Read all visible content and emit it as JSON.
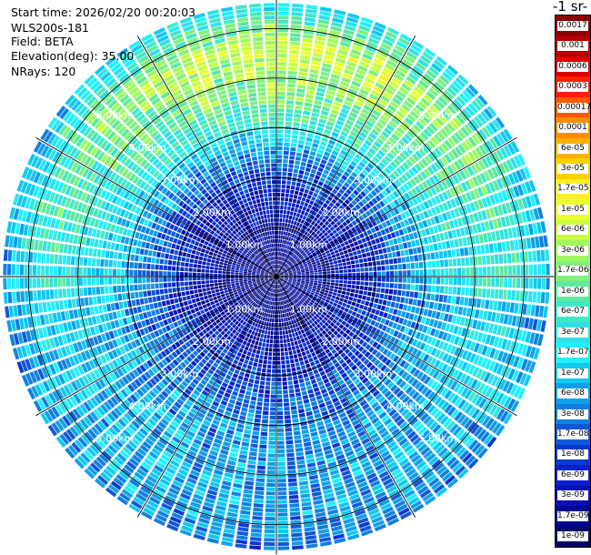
{
  "header": {
    "start_time": "Start time: 2026/02/20 00:20:03",
    "instrument": "WLS200s-181",
    "field": "Field: BETA",
    "elevation": "Elevation(deg): 35.00",
    "nrays": "NRays: 120"
  },
  "colorbar": {
    "unit_title": "-1 sr-",
    "labels": [
      "0.0017",
      "0.001",
      "0.0006",
      "0.0003",
      "0.00017",
      "0.0001",
      "6e-05",
      "3e-05",
      "1.7e-05",
      "1e-05",
      "6e-06",
      "3e-06",
      "1.7e-06",
      "1e-06",
      "6e-07",
      "3e-07",
      "1.7e-07",
      "1e-07",
      "6e-08",
      "3e-08",
      "1.7e-08",
      "1e-08",
      "6e-09",
      "3e-09",
      "1.7e-09",
      "1e-09"
    ],
    "colors": [
      "#8b0000",
      "#b40000",
      "#dc0000",
      "#ff1e00",
      "#ff5a00",
      "#ff8c00",
      "#ffb000",
      "#ffd000",
      "#ffef20",
      "#eaff30",
      "#c8ff40",
      "#a0f860",
      "#80f080",
      "#60e8a0",
      "#40e8c8",
      "#30e0e8",
      "#20f0ff",
      "#10c8f0",
      "#10a0e8",
      "#1080e0",
      "#1058d8",
      "#0a38d0",
      "#0a20c8",
      "#0810b0",
      "#050890",
      "#020468"
    ]
  },
  "chart_data": {
    "type": "heatmap",
    "projection": "polar PPI",
    "field": "BETA",
    "elevation_deg": 35.0,
    "n_rays": 120,
    "range_ring_labels": [
      "1.00km",
      "2.00km",
      "3.00km",
      "4.00km",
      "5.00km"
    ],
    "range_rings_km": [
      1,
      2,
      3,
      4,
      5
    ],
    "max_range_km": 5.6,
    "log10_beta_profile": {
      "range_km": [
        0.0,
        0.8,
        1.6,
        2.4,
        3.2,
        4.0,
        4.6,
        5.0,
        5.6
      ],
      "north_half": [
        -8.8,
        -8.6,
        -8.4,
        -7.6,
        -6.2,
        -5.6,
        -5.2,
        -5.8,
        -7.0
      ],
      "south_half": [
        -8.8,
        -8.6,
        -8.4,
        -7.8,
        -7.4,
        -7.3,
        -7.2,
        -7.3,
        -7.6
      ]
    }
  }
}
